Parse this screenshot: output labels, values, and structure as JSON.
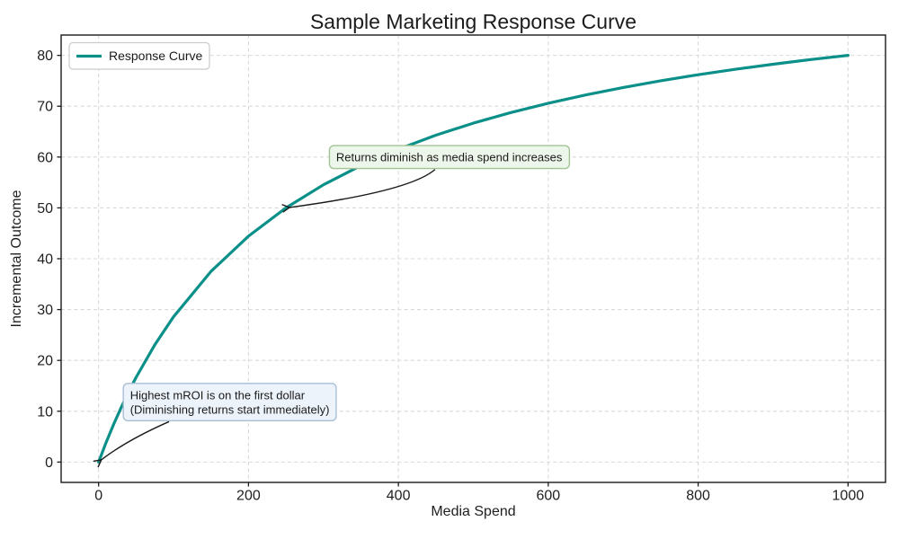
{
  "chart_data": {
    "type": "line",
    "title": "Sample Marketing Response Curve",
    "xlabel": "Media Spend",
    "ylabel": "Incremental Outcome",
    "xlim": [
      -50,
      1050
    ],
    "ylim": [
      -4,
      84
    ],
    "xticks": [
      0,
      200,
      400,
      600,
      800,
      1000
    ],
    "yticks": [
      0,
      10,
      20,
      30,
      40,
      50,
      60,
      70,
      80
    ],
    "grid": true,
    "grid_color": "#d9d9d9",
    "frame_color": "#1a1a1a",
    "series": [
      {
        "name": "Response Curve",
        "color": "#0b9089",
        "x": [
          0,
          10,
          20,
          30,
          40,
          50,
          75,
          100,
          150,
          200,
          250,
          300,
          350,
          400,
          450,
          500,
          550,
          600,
          650,
          700,
          750,
          800,
          850,
          900,
          950,
          1000
        ],
        "y": [
          0,
          3.85,
          7.41,
          10.71,
          13.79,
          16.67,
          23.08,
          28.57,
          37.5,
          44.44,
          50,
          54.55,
          58.33,
          61.54,
          64.29,
          66.67,
          68.75,
          70.59,
          72.22,
          73.68,
          75,
          76.19,
          77.27,
          78.26,
          79.17,
          80
        ]
      }
    ],
    "legend": {
      "position": "upper-left",
      "entries": [
        {
          "label": "Response Curve",
          "color": "#0b9089"
        }
      ]
    },
    "annotations": [
      {
        "text": "Returns diminish as media spend increases",
        "target_xy": [
          250,
          50
        ],
        "label_xy": [
          308,
          60
        ],
        "bg": "#edf6ea",
        "border": "#a3c293",
        "arrow_color": "#1a1a1a"
      },
      {
        "text": "Highest mROI is on the first dollar\n(Diminishing returns start immediately)",
        "target_xy": [
          0,
          0
        ],
        "label_xy": [
          33,
          11.8
        ],
        "bg": "#ecf3fb",
        "border": "#a9bfd6",
        "arrow_color": "#1a1a1a"
      }
    ]
  }
}
